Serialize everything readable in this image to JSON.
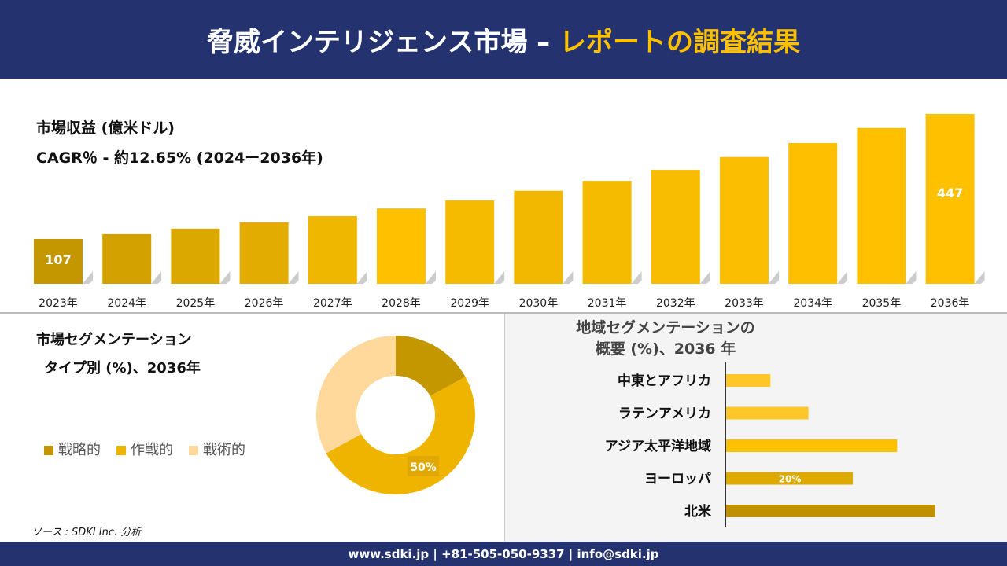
{
  "header": {
    "title_main": "脅威インテリジェンス市場 –",
    "title_accent": "レポートの調査結果"
  },
  "revenue": {
    "title": "市場収益 (億米ドル)",
    "cagr": "CAGR％ - 約12.65% (2024ー2036年)"
  },
  "chart_data": [
    {
      "type": "bar",
      "categories": [
        "2023年",
        "2024年",
        "2025年",
        "2026年",
        "2027年",
        "2028年",
        "2029年",
        "2030年",
        "2031年",
        "2032年",
        "2033年",
        "2034年",
        "2035年",
        "2036年"
      ],
      "values": [
        107,
        120,
        135,
        152,
        169,
        190,
        212,
        238,
        265,
        295,
        330,
        368,
        409,
        447
      ],
      "data_labels": {
        "0": "107",
        "13": "447"
      },
      "colors": [
        "#c49600",
        "#d4a200",
        "#dba800",
        "#e2ad00",
        "#efb700",
        "#ffc000",
        "#f5bb00",
        "#f2b800",
        "#f5bb00",
        "#f8bd00",
        "#fbbe00",
        "#fdbf00",
        "#ffc000",
        "#ffc000"
      ]
    },
    {
      "type": "pie",
      "title": "市場セグメンテーション タイプ別 (%)、2036年",
      "categories": [
        "戦略的",
        "作戦的",
        "戦術的"
      ],
      "values": [
        17,
        50,
        33
      ],
      "data_labels": {
        "1": "50%"
      },
      "colors": [
        "#c49600",
        "#efb400",
        "#ffd89b"
      ]
    },
    {
      "type": "bar",
      "orientation": "horizontal",
      "title": "地域セグメンテーションの 概要 (%)、2036 年",
      "categories": [
        "中東とアフリカ",
        "ラテンアメリカ",
        "アジア太平洋地域",
        "ヨーロッパ",
        "北米"
      ],
      "values": [
        7,
        13,
        27,
        20,
        33
      ],
      "data_labels": {
        "3": "20%"
      },
      "colors": [
        "#ffc629",
        "#ffc629",
        "#ffc000",
        "#dcaa00",
        "#c09000"
      ]
    }
  ],
  "segment": {
    "title1": "市場セグメンテーション",
    "title2": "タイプ別 (%)、2036年"
  },
  "region": {
    "title1": "地域セグメンテーションの",
    "title2": "概要 (%)、2036 年"
  },
  "source": "ソース : SDKI Inc. 分析",
  "footer": "www.sdki.jp | +81-505-050-9337 | info@sdki.jp"
}
